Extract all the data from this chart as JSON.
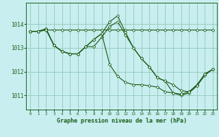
{
  "title": "Graphe pression niveau de la mer (hPa)",
  "background_color": "#c8eef0",
  "grid_color": "#90c8b8",
  "line_color": "#1a5e1a",
  "ylim": [
    1010.4,
    1014.9
  ],
  "xlim": [
    -0.5,
    23.5
  ],
  "yticks": [
    1011,
    1012,
    1013,
    1014
  ],
  "xticks": [
    0,
    1,
    2,
    3,
    4,
    5,
    6,
    7,
    8,
    9,
    10,
    11,
    12,
    13,
    14,
    15,
    16,
    17,
    18,
    19,
    20,
    21,
    22,
    23
  ],
  "s1": [
    1013.7,
    1013.7,
    1013.75,
    1013.75,
    1013.75,
    1013.75,
    1013.75,
    1013.75,
    1013.75,
    1013.75,
    1013.75,
    1013.75,
    1013.75,
    1013.75,
    1013.75,
    1013.75,
    1013.75,
    1013.75,
    1013.75,
    1013.75,
    1013.75,
    1013.75,
    1013.75,
    1013.75
  ],
  "s2": [
    1013.7,
    1013.7,
    1013.8,
    1013.1,
    1012.85,
    1012.75,
    1012.75,
    1013.05,
    1013.05,
    1013.45,
    1013.9,
    1014.1,
    1013.55,
    1013.0,
    1012.55,
    1012.2,
    1011.75,
    1011.6,
    1011.45,
    1011.2,
    1011.15,
    1011.45,
    1011.9,
    1012.1
  ],
  "s3": [
    1013.7,
    1013.7,
    1013.8,
    1013.1,
    1012.85,
    1012.75,
    1012.75,
    1013.05,
    1013.35,
    1013.6,
    1014.1,
    1014.35,
    1013.65,
    1013.0,
    1012.55,
    1012.2,
    1011.75,
    1011.6,
    1011.1,
    1011.0,
    1011.1,
    1011.4,
    1011.85,
    1012.1
  ],
  "s4": [
    1013.7,
    1013.7,
    1013.75,
    1013.1,
    1012.85,
    1012.75,
    1012.75,
    1013.05,
    1013.35,
    1013.6,
    1012.3,
    1011.8,
    1011.55,
    1011.45,
    1011.45,
    1011.4,
    1011.35,
    1011.15,
    1011.1,
    1011.05,
    1011.15,
    1011.4,
    1011.9,
    1012.1
  ]
}
